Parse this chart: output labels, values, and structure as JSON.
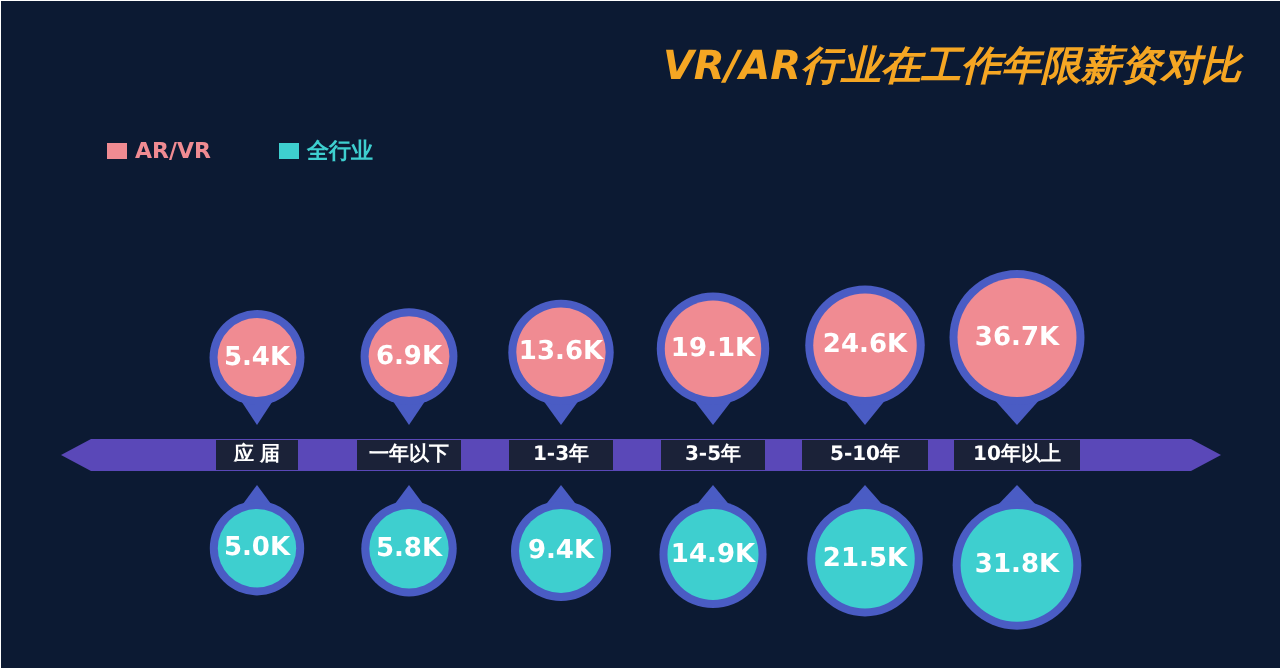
{
  "chart_data": {
    "type": "other",
    "title": "VR/AR行业在工作年限薪资对比",
    "categories": [
      "应 届",
      "一年以下",
      "1-3年",
      "3-5年",
      "5-10年",
      "10年以上"
    ],
    "series": [
      {
        "name": "AR/VR",
        "color": "#f08b92",
        "values": [
          5.4,
          6.9,
          13.6,
          19.1,
          24.6,
          36.7
        ],
        "value_labels": [
          "5.4K",
          "6.9K",
          "13.6K",
          "19.1K",
          "24.6K",
          "36.7K"
        ]
      },
      {
        "name": "全行业",
        "color": "#3ecfcf",
        "values": [
          5.0,
          5.8,
          9.4,
          14.9,
          21.5,
          31.8
        ],
        "value_labels": [
          "5.0K",
          "5.8K",
          "9.4K",
          "14.9K",
          "21.5K",
          "31.8K"
        ]
      }
    ],
    "legend": "top left"
  }
}
